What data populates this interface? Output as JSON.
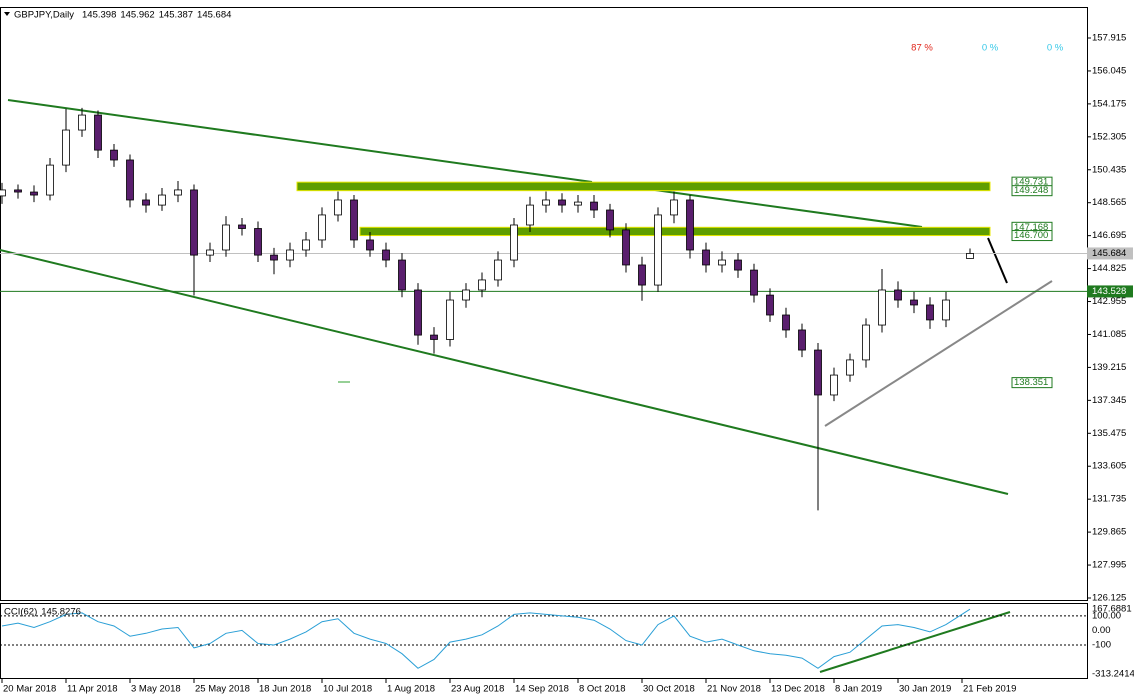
{
  "chart_data": {
    "type": "candlestick",
    "title": "GBPJPY,Daily",
    "header_values": [
      145.398,
      145.962,
      145.387,
      145.684
    ],
    "percent_labels": [
      "87 %",
      "0 %",
      "0 %"
    ],
    "up_color": "#ffffff",
    "down_color": "#5a1e6e",
    "x": [
      0,
      4,
      8,
      12,
      16,
      20,
      24,
      28,
      32,
      36,
      40,
      44,
      48,
      52,
      56,
      60,
      64,
      68,
      72,
      76,
      80,
      84,
      88,
      92,
      96,
      100,
      104,
      108,
      112,
      116,
      120,
      124,
      128,
      132,
      136,
      140,
      144,
      148,
      152,
      156,
      160,
      164,
      168,
      172,
      176,
      180,
      184,
      188,
      192,
      196,
      200,
      204,
      208,
      212,
      216,
      220,
      224,
      228,
      232,
      236,
      242
    ],
    "open": [
      148.95,
      149.29,
      149.17,
      149.0,
      150.7,
      152.69,
      153.54,
      151.55,
      150.99,
      148.72,
      148.43,
      149.0,
      149.29,
      145.59,
      145.88,
      147.3,
      147.1,
      145.59,
      145.31,
      145.88,
      146.45,
      147.87,
      148.72,
      146.45,
      145.88,
      145.31,
      143.61,
      141.05,
      140.8,
      143.04,
      143.61,
      144.18,
      145.31,
      147.3,
      148.43,
      148.72,
      148.43,
      148.6,
      148.15,
      147.02,
      145.03,
      143.89,
      147.87,
      148.72,
      145.88,
      145.03,
      145.31,
      144.74,
      143.32,
      142.19,
      141.34,
      140.2,
      137.65,
      138.78,
      139.64,
      141.62,
      143.61,
      143.04,
      142.76,
      141.91,
      145.398
    ],
    "high": [
      149.69,
      149.6,
      149.55,
      151.1,
      153.9,
      153.95,
      153.8,
      151.9,
      151.3,
      149.1,
      149.4,
      149.8,
      149.6,
      146.3,
      147.8,
      147.7,
      147.5,
      146.0,
      146.3,
      146.9,
      148.3,
      149.2,
      149.0,
      146.9,
      146.3,
      145.7,
      144.0,
      141.5,
      143.5,
      144.0,
      144.6,
      145.8,
      147.7,
      148.9,
      149.2,
      149.1,
      149.0,
      149.0,
      148.5,
      147.4,
      145.5,
      148.3,
      149.2,
      149.0,
      146.3,
      145.8,
      145.7,
      145.1,
      143.7,
      142.6,
      141.7,
      140.6,
      139.2,
      140.0,
      142.0,
      144.8,
      144.1,
      143.5,
      143.2,
      143.5,
      145.962
    ],
    "low": [
      148.5,
      148.8,
      148.6,
      148.7,
      150.3,
      152.3,
      151.1,
      150.6,
      148.3,
      148.0,
      148.1,
      148.6,
      143.3,
      145.2,
      145.5,
      146.7,
      145.2,
      144.5,
      144.9,
      145.5,
      146.0,
      147.5,
      146.0,
      145.5,
      144.9,
      143.2,
      140.5,
      140.0,
      140.4,
      142.6,
      143.2,
      143.8,
      144.9,
      146.9,
      148.0,
      148.0,
      148.0,
      147.7,
      146.6,
      144.6,
      143.0,
      143.5,
      147.4,
      145.4,
      144.6,
      144.6,
      144.3,
      142.9,
      141.8,
      140.9,
      139.8,
      131.1,
      137.3,
      138.4,
      139.2,
      141.2,
      142.6,
      142.3,
      141.4,
      141.5,
      145.387
    ],
    "close": [
      149.29,
      149.17,
      149.0,
      150.7,
      152.69,
      153.54,
      151.55,
      150.99,
      148.72,
      148.43,
      149.0,
      149.29,
      145.59,
      145.88,
      147.3,
      147.1,
      145.59,
      145.31,
      145.88,
      146.45,
      147.87,
      148.72,
      146.45,
      145.88,
      145.31,
      143.61,
      141.05,
      140.8,
      143.04,
      143.61,
      144.18,
      145.31,
      147.3,
      148.43,
      148.72,
      148.43,
      148.6,
      148.15,
      147.02,
      145.03,
      143.89,
      147.87,
      148.72,
      145.88,
      145.03,
      145.31,
      144.74,
      143.32,
      142.19,
      141.34,
      140.2,
      137.65,
      138.78,
      139.64,
      141.62,
      143.61,
      143.04,
      142.76,
      141.91,
      143.04,
      145.684
    ],
    "xlim": [
      -0.5,
      271.25
    ],
    "xticks": [
      {
        "value": 0,
        "label": "20 Mar 2018"
      },
      {
        "value": 16,
        "label": "11 Apr 2018"
      },
      {
        "value": 32,
        "label": "3 May 2018"
      },
      {
        "value": 48,
        "label": "25 May 2018"
      },
      {
        "value": 64,
        "label": "18 Jun 2018"
      },
      {
        "value": 80,
        "label": "10 Jul 2018"
      },
      {
        "value": 96,
        "label": "1 Aug 2018"
      },
      {
        "value": 112,
        "label": "23 Aug 2018"
      },
      {
        "value": 128,
        "label": "14 Sep 2018"
      },
      {
        "value": 144,
        "label": "8 Oct 2018"
      },
      {
        "value": 160,
        "label": "30 Oct 2018"
      },
      {
        "value": 176,
        "label": "21 Nov 2018"
      },
      {
        "value": 192,
        "label": "13 Dec 2018"
      },
      {
        "value": 208,
        "label": "8 Jan 2019"
      },
      {
        "value": 224,
        "label": "30 Jan 2019"
      },
      {
        "value": 240,
        "label": "21 Feb 2019"
      }
    ],
    "ylim": [
      126.011,
      159.618
    ],
    "yticks": [
      157.915,
      156.045,
      154.175,
      152.305,
      150.435,
      148.565,
      146.695,
      144.825,
      142.955,
      141.085,
      139.215,
      137.345,
      135.475,
      133.605,
      131.735,
      129.865,
      127.995,
      126.125
    ],
    "zone_color": "#5f9e00",
    "zones": [
      {
        "high": 149.731,
        "low": 149.248
      },
      {
        "high": 147.168,
        "low": {
          "value": 146.7,
          "label": "146.700"
        }
      }
    ],
    "last_price": 145.684,
    "support_line": 143.528,
    "line_color": "#1f7a1f",
    "level_label": 138.351,
    "indicator": {
      "name": "CCI(62)",
      "value": 145.8276,
      "color": "#2a9fd6",
      "values": [
        30,
        50,
        20,
        60,
        110,
        120,
        60,
        30,
        -40,
        -20,
        10,
        20,
        -120,
        -90,
        -20,
        0,
        -90,
        -100,
        -60,
        -10,
        60,
        80,
        -20,
        -60,
        -90,
        -160,
        -260,
        -200,
        -80,
        -60,
        -30,
        30,
        110,
        120,
        110,
        100,
        90,
        70,
        10,
        -70,
        -100,
        40,
        100,
        -40,
        -80,
        -60,
        -100,
        -140,
        -160,
        -170,
        -190,
        -260,
        -180,
        -150,
        -60,
        30,
        40,
        20,
        -10,
        40,
        145.8276
      ],
      "ylim": [
        -313.2414,
        167.6881
      ],
      "yticks": [
        167.6881,
        {
          "value": 100,
          "label": "100.00"
        },
        {
          "value": 0,
          "label": "0.00"
        },
        -100,
        -313.2414
      ],
      "levels": [
        100,
        -100
      ]
    }
  }
}
